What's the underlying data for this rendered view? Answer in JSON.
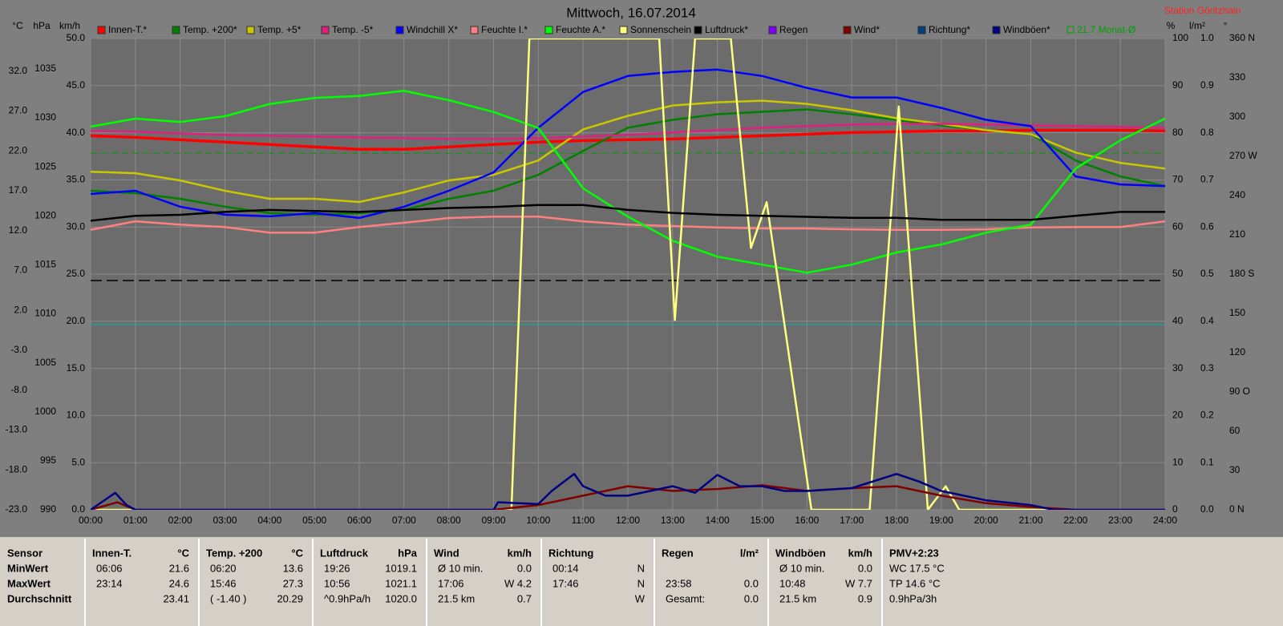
{
  "chart_data": {
    "type": "line",
    "title": "Mittwoch, 16.07.2014",
    "station": "Station Göritzhain",
    "grid": true,
    "grid_axis": "kmh",
    "xlim": [
      0,
      24
    ],
    "xticks": [
      {
        "value": 0,
        "label": "00:00"
      },
      {
        "value": 1,
        "label": "01:00"
      },
      {
        "value": 2,
        "label": "02:00"
      },
      {
        "value": 3,
        "label": "03:00"
      },
      {
        "value": 4,
        "label": "04:00"
      },
      {
        "value": 5,
        "label": "05:00"
      },
      {
        "value": 6,
        "label": "06:00"
      },
      {
        "value": 7,
        "label": "07:00"
      },
      {
        "value": 8,
        "label": "08:00"
      },
      {
        "value": 9,
        "label": "09:00"
      },
      {
        "value": 10,
        "label": "10:00"
      },
      {
        "value": 11,
        "label": "11:00"
      },
      {
        "value": 12,
        "label": "12:00"
      },
      {
        "value": 13,
        "label": "13:00"
      },
      {
        "value": 14,
        "label": "14:00"
      },
      {
        "value": 15,
        "label": "15:00"
      },
      {
        "value": 16,
        "label": "16:00"
      },
      {
        "value": 17,
        "label": "17:00"
      },
      {
        "value": 18,
        "label": "18:00"
      },
      {
        "value": 19,
        "label": "19:00"
      },
      {
        "value": 20,
        "label": "20:00"
      },
      {
        "value": 21,
        "label": "21:00"
      },
      {
        "value": 22,
        "label": "22:00"
      },
      {
        "value": 23,
        "label": "23:00"
      },
      {
        "value": 24,
        "label": "24:00"
      }
    ],
    "x": [
      0,
      1,
      2,
      3,
      4,
      5,
      6,
      7,
      8,
      9,
      10,
      11,
      12,
      13,
      14,
      15,
      16,
      17,
      18,
      19,
      20,
      21,
      22,
      23,
      24
    ],
    "axes": {
      "celsius": {
        "label": "°C",
        "lim": [
          -23,
          36.1
        ],
        "ticks": [
          {
            "value": -23,
            "label": "-23.0"
          },
          {
            "value": -18,
            "label": "-18.0"
          },
          {
            "value": -13,
            "label": "-13.0"
          },
          {
            "value": -8,
            "label": "-8.0"
          },
          {
            "value": -3,
            "label": "-3.0"
          },
          {
            "value": 2,
            "label": "2.0"
          },
          {
            "value": 7,
            "label": "7.0"
          },
          {
            "value": 12,
            "label": "12.0"
          },
          {
            "value": 17,
            "label": "17.0"
          },
          {
            "value": 22,
            "label": "22.0"
          },
          {
            "value": 27,
            "label": "27.0"
          },
          {
            "value": 32,
            "label": "32.0"
          }
        ]
      },
      "hpa": {
        "label": "hPa",
        "lim": [
          990,
          1038.1
        ],
        "ticks": [
          990,
          995,
          1000,
          1005,
          1010,
          1015,
          1020,
          1025,
          1030,
          1035
        ]
      },
      "kmh": {
        "label": "km/h",
        "lim": [
          0,
          50
        ],
        "ticks": [
          {
            "value": 0,
            "label": "0.0"
          },
          {
            "value": 5,
            "label": "5.0"
          },
          {
            "value": 10,
            "label": "10.0"
          },
          {
            "value": 15,
            "label": "15.0"
          },
          {
            "value": 20,
            "label": "20.0"
          },
          {
            "value": 25,
            "label": "25.0"
          },
          {
            "value": 30,
            "label": "30.0"
          },
          {
            "value": 35,
            "label": "35.0"
          },
          {
            "value": 40,
            "label": "40.0"
          },
          {
            "value": 45,
            "label": "45.0"
          },
          {
            "value": 50,
            "label": "50.0"
          }
        ]
      },
      "pct": {
        "label": "%",
        "lim": [
          0,
          100
        ],
        "ticks": [
          0,
          10,
          20,
          30,
          40,
          50,
          60,
          70,
          80,
          90,
          100
        ]
      },
      "lm2": {
        "label": "l/m²",
        "lim": [
          0,
          1
        ],
        "ticks": [
          {
            "value": 0,
            "label": "0.0"
          },
          0.1,
          0.2,
          0.3,
          0.4,
          0.5,
          0.6,
          0.7,
          0.8,
          0.9,
          {
            "value": 1,
            "label": "1.0"
          }
        ]
      },
      "w": {
        "label": "°",
        "lim": [
          0,
          360
        ],
        "ticks": [
          {
            "value": 0,
            "label": "0 N"
          },
          30,
          60,
          {
            "value": 90,
            "label": "90 O"
          },
          120,
          150,
          {
            "value": 180,
            "label": "180 S"
          },
          210,
          240,
          {
            "value": 270,
            "label": "270 W"
          },
          300,
          330,
          {
            "value": 360,
            "label": "360 N"
          }
        ]
      }
    },
    "monthly_avg": {
      "label": "21.7 Monat-Ø",
      "value": 21.7,
      "color": "#00a000"
    },
    "series": [
      {
        "name": "Innen-T.*",
        "color": "#ff0000",
        "axis": "celsius",
        "values": [
          23.9,
          23.7,
          23.4,
          23.1,
          22.8,
          22.5,
          22.2,
          22.2,
          22.5,
          22.8,
          23.1,
          23.3,
          23.4,
          23.5,
          23.7,
          23.9,
          24.1,
          24.3,
          24.4,
          24.5,
          24.5,
          24.6,
          24.6,
          24.6,
          24.5
        ]
      },
      {
        "name": "Temp. +200*",
        "color": "#008000",
        "axis": "celsius",
        "values": [
          17.0,
          16.7,
          16.0,
          15.0,
          14.2,
          14.0,
          14.2,
          14.6,
          16.0,
          17.0,
          19.0,
          22.0,
          24.9,
          25.9,
          26.6,
          26.9,
          27.2,
          26.6,
          25.9,
          25.2,
          24.6,
          24.1,
          20.8,
          18.8,
          17.6
        ]
      },
      {
        "name": "Temp. +5*",
        "color": "#c8c800",
        "axis": "celsius",
        "values": [
          19.4,
          19.2,
          18.3,
          17.0,
          16.0,
          16.0,
          15.6,
          16.8,
          18.3,
          19.0,
          20.8,
          24.7,
          26.4,
          27.7,
          28.1,
          28.3,
          27.9,
          27.1,
          26.1,
          25.4,
          24.6,
          24.1,
          21.8,
          20.5,
          19.8
        ]
      },
      {
        "name": "Temp. -5*",
        "color": "#e0207f",
        "axis": "celsius",
        "values": [
          24.5,
          24.4,
          24.2,
          24.0,
          23.9,
          23.8,
          23.7,
          23.6,
          23.5,
          23.5,
          23.6,
          23.8,
          24.0,
          24.3,
          24.6,
          24.9,
          25.1,
          25.3,
          25.4,
          25.4,
          25.3,
          25.2,
          25.1,
          25.0,
          24.9
        ]
      },
      {
        "name": "Windchill X*",
        "color": "#0000ff",
        "axis": "celsius",
        "values": [
          16.6,
          17.0,
          15.0,
          14.0,
          13.8,
          14.2,
          13.6,
          15.0,
          17.0,
          19.3,
          24.9,
          29.4,
          31.4,
          31.9,
          32.2,
          31.4,
          29.9,
          28.7,
          28.7,
          27.4,
          25.9,
          25.1,
          18.8,
          17.8,
          17.6
        ]
      },
      {
        "name": "Feuchte I.*",
        "color": "#ff8080",
        "axis": "pct",
        "values": [
          59.4,
          61.2,
          60.5,
          60.0,
          58.8,
          58.8,
          60.0,
          60.9,
          61.9,
          62.2,
          62.2,
          61.2,
          60.5,
          60.2,
          59.9,
          59.7,
          59.7,
          59.5,
          59.4,
          59.4,
          59.5,
          59.9,
          60.0,
          60.0,
          61.2
        ]
      },
      {
        "name": "Feuchte A.*",
        "color": "#00ff00",
        "axis": "pct",
        "values": [
          81.3,
          83.0,
          82.3,
          83.5,
          86.1,
          87.4,
          87.8,
          88.9,
          86.9,
          84.4,
          81.0,
          68.2,
          62.2,
          57.1,
          53.7,
          52.0,
          50.3,
          52.0,
          54.6,
          56.3,
          58.8,
          60.5,
          72.4,
          78.4,
          83.0
        ]
      },
      {
        "name": "Sonnenschein",
        "color": "#ffff80",
        "axis": "w",
        "x": [
          0,
          9.4,
          9.8,
          12.7,
          13.05,
          13.5,
          14.3,
          14.75,
          15.1,
          16.1,
          17.4,
          18.05,
          18.7,
          19.1,
          19.4,
          24
        ],
        "values": [
          0,
          0,
          360,
          360,
          145,
          360,
          360,
          200,
          235,
          0,
          0,
          308,
          0,
          18,
          0,
          0
        ]
      },
      {
        "name": "Luftdruck*",
        "color": "#000000",
        "axis": "hpa",
        "values": [
          1019.5,
          1020.0,
          1020.1,
          1020.4,
          1020.6,
          1020.5,
          1020.4,
          1020.6,
          1020.8,
          1020.9,
          1021.1,
          1021.1,
          1020.6,
          1020.3,
          1020.1,
          1020.0,
          1019.9,
          1019.8,
          1019.8,
          1019.6,
          1019.6,
          1019.6,
          1020.0,
          1020.4,
          1020.4
        ]
      },
      {
        "name": "Regen",
        "color": "#8000ff",
        "axis": "lm2"
      },
      {
        "name": "Wind*",
        "color": "#800000",
        "axis": "kmh",
        "x": [
          0,
          0.6,
          1,
          9,
          10,
          11,
          12,
          13,
          14,
          15,
          16,
          17,
          18,
          19,
          20,
          21,
          22,
          24
        ],
        "values": [
          0,
          0.8,
          0,
          0,
          0.5,
          1.5,
          2.5,
          2.0,
          2.2,
          2.6,
          2.0,
          2.3,
          2.5,
          1.5,
          0.7,
          0.3,
          0,
          0
        ]
      },
      {
        "name": "Richtung*",
        "color": "#004080",
        "axis": "w"
      },
      {
        "name": "Windböen*",
        "color": "#000080",
        "axis": "kmh",
        "x": [
          0,
          0.55,
          0.8,
          1,
          9,
          9.1,
          10,
          10.3,
          10.8,
          11,
          11.5,
          12,
          13,
          13.5,
          14,
          14.5,
          15,
          15.5,
          16,
          17,
          18,
          18.5,
          19,
          20,
          21,
          21.5,
          24
        ],
        "values": [
          0,
          1.8,
          0.5,
          0,
          0,
          0.8,
          0.6,
          2.0,
          3.8,
          2.5,
          1.5,
          1.5,
          2.5,
          1.8,
          3.7,
          2.5,
          2.5,
          2.0,
          2.0,
          2.3,
          3.8,
          3.0,
          2.0,
          1.0,
          0.5,
          0,
          0
        ]
      }
    ]
  },
  "table": {
    "columns": [
      {
        "title": "Sensor",
        "rows": [
          [
            "MinWert"
          ],
          [
            "MaxWert"
          ],
          [
            "Durchschnitt"
          ]
        ]
      },
      {
        "title": "Innen-T.",
        "unit": "°C",
        "rows": [
          [
            "06:06",
            "21.6"
          ],
          [
            "23:14",
            "24.6"
          ],
          [
            null,
            "23.41"
          ]
        ]
      },
      {
        "title": "Temp. +200",
        "unit": "°C",
        "rows": [
          [
            "06:20",
            "13.6"
          ],
          [
            "15:46",
            "27.3"
          ],
          [
            "( -1.40 )",
            "20.29"
          ]
        ]
      },
      {
        "title": "Luftdruck",
        "unit": "hPa",
        "rows": [
          [
            "19:26",
            "1019.1"
          ],
          [
            "10:56",
            "1021.1"
          ],
          [
            "^0.9hPa/h",
            "1020.0"
          ]
        ]
      },
      {
        "title": "Wind",
        "unit": "km/h",
        "rows": [
          [
            "Ø 10 min.",
            "0.0"
          ],
          [
            "17:06",
            "W 4.2"
          ],
          [
            "21.5 km",
            "0.7"
          ]
        ]
      },
      {
        "title": "Richtung",
        "rows": [
          [
            "00:14",
            "N"
          ],
          [
            "17:46",
            "N"
          ],
          [
            null,
            "W"
          ]
        ]
      },
      {
        "title": "Regen",
        "unit": "l/m²",
        "rows": [
          [
            null,
            null
          ],
          [
            "23:58",
            "0.0"
          ],
          [
            "Gesamt:",
            "0.0"
          ]
        ]
      },
      {
        "title": "Windböen",
        "unit": "km/h",
        "rows": [
          [
            "Ø 10 min.",
            "0.0"
          ],
          [
            "10:48",
            "W 7.7"
          ],
          [
            "21.5 km",
            "0.9"
          ]
        ]
      },
      {
        "title": "PMV+2:23",
        "rows": [
          [
            "WC 17.5 °C"
          ],
          [
            "TP 14.6 °C"
          ],
          [
            "0.9hPa/3h"
          ]
        ]
      }
    ]
  }
}
